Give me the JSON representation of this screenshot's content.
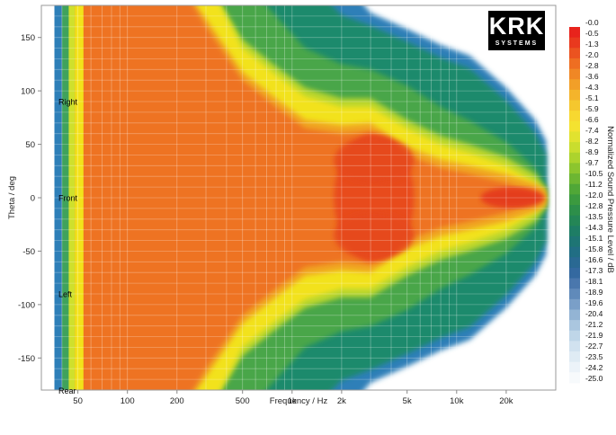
{
  "chart_data": {
    "type": "heatmap",
    "xlabel": "Frequency / Hz",
    "ylabel": "Theta / deg",
    "colorbar_label": "Normalized Sound Pressure Level / dB",
    "x_scale": "log",
    "xlim": [
      30,
      40000
    ],
    "ylim": [
      -180,
      180
    ],
    "x_ticks": [
      {
        "value": 50,
        "label": "50"
      },
      {
        "value": 100,
        "label": "100"
      },
      {
        "value": 200,
        "label": "200"
      },
      {
        "value": 500,
        "label": "500"
      },
      {
        "value": 1000,
        "label": "1k"
      },
      {
        "value": 2000,
        "label": "2k"
      },
      {
        "value": 5000,
        "label": "5k"
      },
      {
        "value": 10000,
        "label": "10k"
      },
      {
        "value": 20000,
        "label": "20k"
      }
    ],
    "y_ticks": [
      150,
      100,
      50,
      0,
      -50,
      -100,
      -150
    ],
    "direction_labels": [
      {
        "angle": 90,
        "label": "Right"
      },
      {
        "angle": 0,
        "label": "Front"
      },
      {
        "angle": -90,
        "label": "Left"
      },
      {
        "angle": -180,
        "label": "Rear"
      }
    ],
    "colorbar_levels": [
      "-0.0",
      "-0.5",
      "-1.3",
      "-2.0",
      "-2.8",
      "-3.6",
      "-4.3",
      "-5.1",
      "-5.9",
      "-6.6",
      "-7.4",
      "-8.2",
      "-8.9",
      "-9.7",
      "-10.5",
      "-11.2",
      "-12.0",
      "-12.8",
      "-13.5",
      "-14.3",
      "-15.1",
      "-15.8",
      "-16.6",
      "-17.3",
      "-18.1",
      "-18.9",
      "-19.6",
      "-20.4",
      "-21.2",
      "-21.9",
      "-22.7",
      "-23.5",
      "-24.2",
      "-25.0"
    ],
    "level_range_db": [
      -25,
      0
    ],
    "beamwidth_contours": [
      {
        "frequency_hz": 35,
        "edges_deg": {
          "minus3": 180,
          "minus6": 180,
          "minus12": 180,
          "minus20": 180
        }
      },
      {
        "frequency_hz": 45,
        "edges_deg": {
          "minus3": 180,
          "minus6": 180,
          "minus12": 180,
          "minus20": 180
        }
      },
      {
        "frequency_hz": 60,
        "edges_deg": {
          "minus3": 180,
          "minus6": 180,
          "minus12": 180,
          "minus20": 180
        }
      },
      {
        "frequency_hz": 100,
        "edges_deg": {
          "minus3": 180,
          "minus6": 180,
          "minus12": 180,
          "minus20": 180
        }
      },
      {
        "frequency_hz": 200,
        "edges_deg": {
          "minus3": 180,
          "minus6": 180,
          "minus12": 180,
          "minus20": 180
        }
      },
      {
        "frequency_hz": 300,
        "edges_deg": {
          "minus3": 160,
          "minus6": 180,
          "minus12": 180,
          "minus20": 180
        }
      },
      {
        "frequency_hz": 500,
        "edges_deg": {
          "minus3": 110,
          "minus6": 140,
          "minus12": 180,
          "minus20": 180
        }
      },
      {
        "frequency_hz": 800,
        "edges_deg": {
          "minus3": 85,
          "minus6": 115,
          "minus12": 170,
          "minus20": 180
        }
      },
      {
        "frequency_hz": 1200,
        "edges_deg": {
          "minus3": 65,
          "minus6": 95,
          "minus12": 140,
          "minus20": 180
        }
      },
      {
        "frequency_hz": 2000,
        "edges_deg": {
          "minus3": 60,
          "minus6": 85,
          "minus12": 125,
          "minus20": 165
        }
      },
      {
        "frequency_hz": 3000,
        "edges_deg": {
          "minus3": 62,
          "minus6": 85,
          "minus12": 120,
          "minus20": 155
        }
      },
      {
        "frequency_hz": 5000,
        "edges_deg": {
          "minus3": 40,
          "minus6": 65,
          "minus12": 105,
          "minus20": 140
        }
      },
      {
        "frequency_hz": 8000,
        "edges_deg": {
          "minus3": 28,
          "minus6": 50,
          "minus12": 85,
          "minus20": 125
        }
      },
      {
        "frequency_hz": 12000,
        "edges_deg": {
          "minus3": 22,
          "minus6": 42,
          "minus12": 72,
          "minus20": 115
        }
      },
      {
        "frequency_hz": 20000,
        "edges_deg": {
          "minus3": 14,
          "minus6": 30,
          "minus12": 52,
          "minus20": 85
        }
      },
      {
        "frequency_hz": 30000,
        "edges_deg": {
          "minus3": 5,
          "minus6": 14,
          "minus12": 28,
          "minus20": 55
        }
      },
      {
        "frequency_hz": 35000,
        "edges_deg": {
          "minus3": 0,
          "minus6": 0,
          "minus12": 10,
          "minus20": 35
        }
      }
    ],
    "grid": true,
    "legend": "colorbar-right"
  },
  "logo": {
    "text": "KRK",
    "subtext": "SYSTEMS"
  }
}
